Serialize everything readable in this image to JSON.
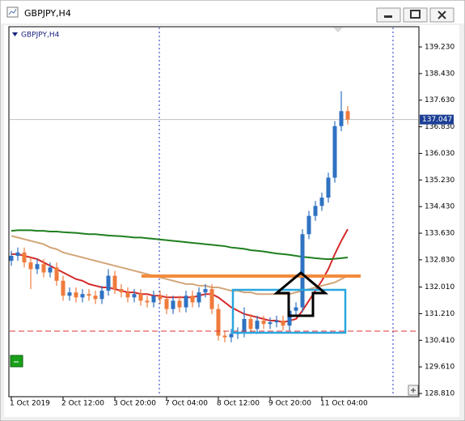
{
  "window": {
    "title": "GBPJPY,H4"
  },
  "chart_data": {
    "type": "candlestick",
    "title": "GBPJPY,H4",
    "categories": [
      "1 Oct 2019",
      null,
      null,
      null,
      null,
      null,
      null,
      null,
      "2 Oct 12:00",
      null,
      null,
      null,
      null,
      null,
      null,
      null,
      "3 Oct 20:00",
      null,
      null,
      null,
      null,
      null,
      null,
      null,
      "7 Oct 04:00",
      null,
      null,
      null,
      null,
      null,
      null,
      null,
      "8 Oct 12:00",
      null,
      null,
      null,
      null,
      null,
      null,
      null,
      "9 Oct 20:00",
      null,
      null,
      null,
      null,
      null,
      null,
      null,
      "11 Oct 04:00",
      null,
      null,
      null,
      null
    ],
    "open": [
      132.8,
      132.95,
      133.05,
      132.75,
      132.55,
      132.7,
      132.45,
      132.6,
      132.2,
      131.75,
      131.85,
      131.7,
      131.8,
      131.75,
      131.65,
      131.9,
      132.35,
      131.95,
      131.85,
      131.7,
      131.8,
      131.6,
      131.55,
      131.75,
      131.65,
      131.35,
      131.6,
      131.4,
      131.75,
      131.55,
      131.85,
      131.95,
      131.35,
      130.55,
      130.5,
      130.6,
      130.65,
      131.05,
      130.75,
      131.0,
      130.9,
      130.95,
      131.0,
      130.85,
      131.3,
      131.4,
      133.6,
      134.15,
      134.45,
      134.7,
      135.3,
      136.85,
      137.3
    ],
    "high": [
      133.1,
      133.2,
      133.2,
      132.9,
      132.85,
      132.85,
      132.75,
      132.75,
      132.35,
      132.0,
      132.0,
      131.95,
      131.95,
      131.9,
      132.05,
      132.55,
      132.5,
      132.1,
      132.0,
      131.95,
      131.95,
      131.75,
      131.9,
      131.9,
      131.8,
      131.75,
      131.75,
      131.9,
      131.9,
      132.0,
      132.1,
      132.1,
      131.5,
      130.7,
      130.75,
      130.8,
      131.4,
      131.2,
      131.15,
      131.15,
      131.1,
      131.15,
      131.15,
      131.45,
      131.55,
      133.75,
      134.3,
      134.6,
      134.85,
      135.45,
      137.0,
      137.9,
      137.45
    ],
    "low": [
      132.65,
      132.8,
      132.6,
      131.95,
      132.4,
      132.3,
      132.3,
      132.05,
      131.6,
      131.6,
      131.55,
      131.55,
      131.6,
      131.5,
      131.5,
      131.75,
      131.8,
      131.7,
      131.55,
      131.55,
      131.45,
      131.4,
      131.4,
      131.5,
      131.2,
      131.2,
      131.25,
      131.25,
      131.4,
      131.4,
      131.7,
      131.2,
      130.4,
      130.35,
      130.35,
      130.45,
      130.5,
      130.6,
      130.6,
      130.75,
      130.75,
      130.8,
      130.7,
      130.7,
      131.15,
      131.25,
      133.45,
      134.0,
      134.3,
      134.55,
      135.15,
      136.7,
      136.9
    ],
    "close": [
      132.95,
      133.05,
      132.75,
      132.55,
      132.7,
      132.45,
      132.6,
      132.2,
      131.75,
      131.85,
      131.7,
      131.8,
      131.75,
      131.65,
      131.9,
      132.35,
      131.95,
      131.85,
      131.7,
      131.8,
      131.6,
      131.55,
      131.75,
      131.65,
      131.35,
      131.6,
      131.4,
      131.75,
      131.55,
      131.85,
      131.95,
      131.35,
      130.55,
      130.5,
      130.6,
      130.65,
      131.05,
      130.75,
      131.0,
      130.9,
      130.95,
      131.0,
      130.85,
      131.3,
      131.4,
      133.6,
      134.15,
      134.45,
      134.7,
      135.3,
      136.85,
      137.3,
      137.047
    ],
    "up_color": "#2f72c2",
    "down_color": "#ef7b3c",
    "lines": [
      {
        "color": "#d42a2a",
        "values": [
          133.0,
          133.0,
          132.95,
          132.9,
          132.85,
          132.75,
          132.65,
          132.55,
          132.45,
          132.35,
          132.25,
          132.2,
          132.1,
          132.05,
          132.0,
          132.0,
          131.95,
          131.9,
          131.85,
          131.85,
          131.8,
          131.8,
          131.75,
          131.75,
          131.7,
          131.7,
          131.7,
          131.7,
          131.7,
          131.75,
          131.8,
          131.8,
          131.7,
          131.55,
          131.4,
          131.3,
          131.2,
          131.15,
          131.1,
          131.05,
          131.0,
          131.0,
          130.95,
          131.0,
          131.05,
          131.3,
          131.6,
          131.9,
          132.2,
          132.55,
          133.0,
          133.4,
          133.75
        ]
      },
      {
        "color": "#d2a679",
        "values": [
          133.55,
          133.5,
          133.45,
          133.4,
          133.35,
          133.3,
          133.2,
          133.15,
          133.05,
          133.0,
          132.95,
          132.9,
          132.85,
          132.8,
          132.75,
          132.7,
          132.65,
          132.6,
          132.55,
          132.5,
          132.45,
          132.4,
          132.35,
          132.3,
          132.25,
          132.2,
          132.15,
          132.1,
          132.1,
          132.05,
          132.05,
          132.0,
          132.0,
          131.95,
          131.9,
          131.9,
          131.85,
          131.85,
          131.8,
          131.8,
          131.8,
          131.8,
          131.8,
          131.8,
          131.85,
          131.9,
          131.95,
          132.0,
          132.05,
          132.1,
          132.15,
          132.25,
          132.35
        ]
      },
      {
        "color": "#1f7f1f",
        "values": [
          133.7,
          133.72,
          133.72,
          133.72,
          133.7,
          133.7,
          133.68,
          133.68,
          133.66,
          133.65,
          133.64,
          133.62,
          133.6,
          133.6,
          133.58,
          133.56,
          133.55,
          133.54,
          133.52,
          133.5,
          133.5,
          133.48,
          133.46,
          133.44,
          133.42,
          133.4,
          133.38,
          133.36,
          133.34,
          133.32,
          133.3,
          133.28,
          133.26,
          133.24,
          133.2,
          133.18,
          133.16,
          133.12,
          133.1,
          133.08,
          133.05,
          133.02,
          133.0,
          132.98,
          132.95,
          132.92,
          132.9,
          132.88,
          132.86,
          132.85,
          132.86,
          132.88,
          132.9
        ]
      }
    ],
    "current_price": 137.047,
    "ylim": [
      128.713,
      139.839
    ],
    "yticks": [
      {
        "value": 139.23,
        "label": "139.230"
      },
      {
        "value": 138.43,
        "label": "138.430"
      },
      {
        "value": 137.63,
        "label": "137.630"
      },
      {
        "value": 136.83,
        "label": "136.830"
      },
      {
        "value": 136.03,
        "label": "136.030"
      },
      {
        "value": 135.23,
        "label": "135.230"
      },
      {
        "value": 134.43,
        "label": "134.430"
      },
      {
        "value": 133.63,
        "label": "133.630"
      },
      {
        "value": 132.83,
        "label": "132.830"
      },
      {
        "value": 132.01,
        "label": "132.010"
      },
      {
        "value": 131.21,
        "label": "131.210"
      },
      {
        "value": 130.41,
        "label": "130.410"
      },
      {
        "value": 129.61,
        "label": "129.610"
      },
      {
        "value": 128.81,
        "label": "128.810"
      }
    ],
    "grid": false
  }
}
